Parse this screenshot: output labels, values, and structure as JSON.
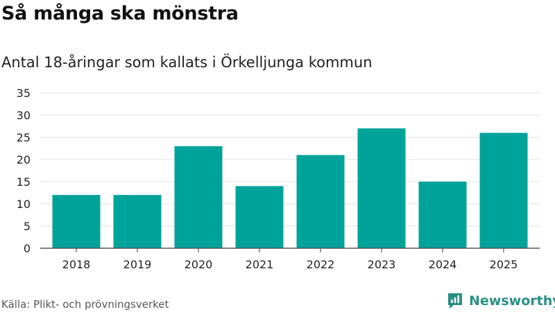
{
  "header": {
    "title": "Så många ska mönstra",
    "subtitle": "Antal 18-åringar som kallats i Örkelljunga kommun"
  },
  "footer": {
    "source": "Källa: Plikt- och prövningsverket",
    "brand": "Newsworthy",
    "brand_icon": "newsworthy-logo-icon"
  },
  "colors": {
    "bar": "#00a39a",
    "grid": "#e2e2e2",
    "axis": "#555555",
    "brand": "#2a8f84"
  },
  "chart_data": {
    "type": "bar",
    "title": "Så många ska mönstra",
    "subtitle": "Antal 18-åringar som kallats i Örkelljunga kommun",
    "xlabel": "",
    "ylabel": "",
    "categories": [
      "2018",
      "2019",
      "2020",
      "2021",
      "2022",
      "2023",
      "2024",
      "2025"
    ],
    "values": [
      12,
      12,
      23,
      14,
      21,
      27,
      15,
      26
    ],
    "ylim": [
      0,
      35
    ],
    "yticks": [
      0,
      5,
      10,
      15,
      20,
      25,
      30,
      35
    ],
    "grid": true,
    "legend": "none"
  }
}
